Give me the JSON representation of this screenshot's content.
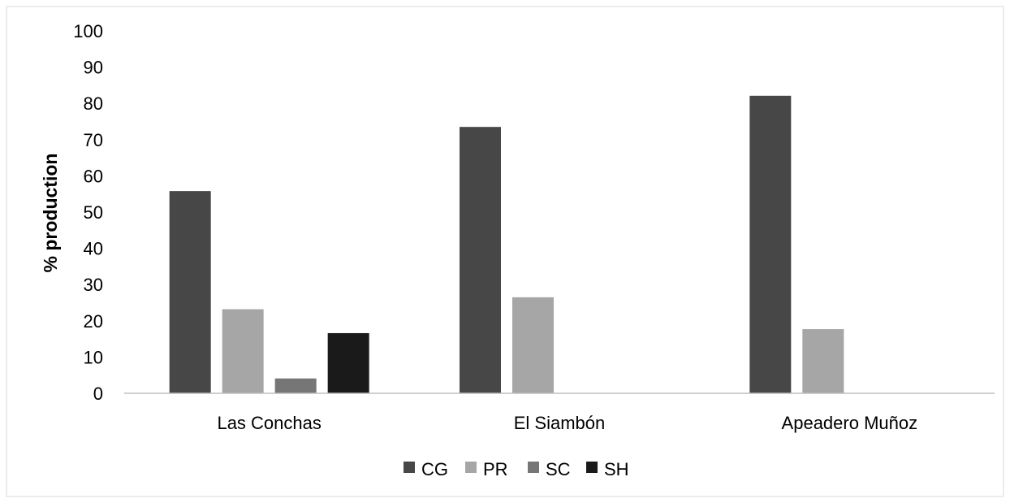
{
  "chart_data": {
    "type": "bar",
    "title": "",
    "xlabel": "",
    "ylabel": "% production",
    "ylim": [
      0,
      100
    ],
    "yticks": [
      0,
      10,
      20,
      30,
      40,
      50,
      60,
      70,
      80,
      90,
      100
    ],
    "grid": false,
    "legend": "bottom",
    "categories": [
      "Las Conchas",
      "El Siambón",
      "Apeadero Muñoz"
    ],
    "series": [
      {
        "name": "CG",
        "color": "#474747",
        "values": [
          55.8,
          73.5,
          82.1
        ]
      },
      {
        "name": "PR",
        "color": "#a6a6a6",
        "values": [
          23.2,
          26.5,
          17.7
        ]
      },
      {
        "name": "SC",
        "color": "#767676",
        "values": [
          4.1,
          null,
          null
        ]
      },
      {
        "name": "SH",
        "color": "#1a1a1a",
        "values": [
          16.6,
          null,
          null
        ]
      }
    ]
  }
}
